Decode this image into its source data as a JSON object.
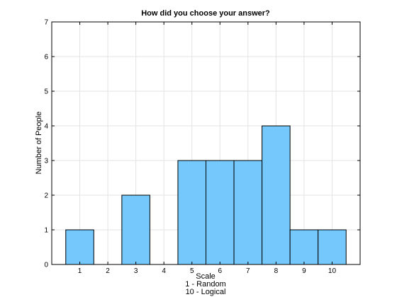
{
  "chart_data": {
    "type": "bar",
    "title": "How did you choose your answer?",
    "xlabel": [
      "Scale",
      "1 - Random",
      "10 - Logical"
    ],
    "ylabel": "Number of People",
    "categories": [
      1,
      2,
      3,
      4,
      5,
      6,
      7,
      8,
      9,
      10
    ],
    "x_tick_labels": [
      "1",
      "2",
      "3",
      "4",
      "5",
      "6",
      "7",
      "8",
      "9",
      "10"
    ],
    "values": [
      1,
      0,
      2,
      0,
      3,
      3,
      3,
      4,
      1,
      1
    ],
    "xlim": [
      0,
      11
    ],
    "ylim": [
      0,
      7
    ],
    "y_ticks": [
      0,
      1,
      2,
      3,
      4,
      5,
      6,
      7
    ],
    "grid": true,
    "bar_color": "#74c8fc",
    "edge_color": "#000000"
  }
}
